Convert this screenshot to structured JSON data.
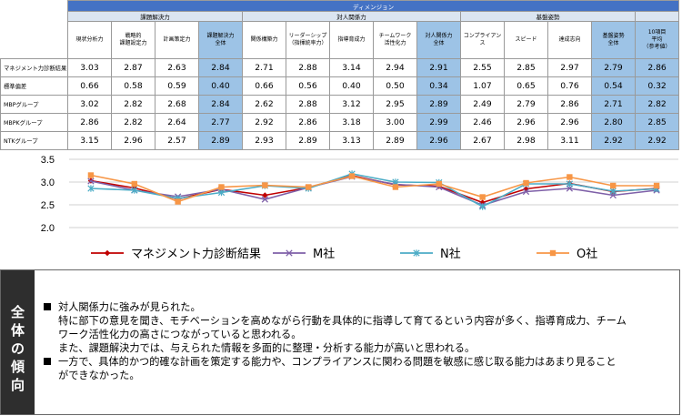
{
  "table": {
    "dimension_header": "ディメンジョン",
    "groups": [
      "課題解決力",
      "対人関係力",
      "基盤姿勢"
    ],
    "columns": [
      "現状分析力",
      "戦略的\n課題設定力",
      "計画策定力",
      "課題解決力\n全体",
      "関係構築力",
      "リーダーシップ\n（指揮統率力）",
      "指導育成力",
      "チームワーク\n活性化力",
      "対人関係力\n全体",
      "コンプライアン\nス",
      "スピード",
      "達成志向",
      "基盤姿勢\n全体",
      "10項目\n平均\n（参考値）"
    ],
    "rows": [
      {
        "label": "マネジメント力診断結果",
        "values": [
          "3.03",
          "2.87",
          "2.63",
          "2.84",
          "2.71",
          "2.88",
          "3.14",
          "2.94",
          "2.91",
          "2.55",
          "2.85",
          "2.97",
          "2.79",
          "2.86"
        ]
      },
      {
        "label": "標準偏差",
        "values": [
          "0.66",
          "0.58",
          "0.59",
          "0.40",
          "0.66",
          "0.56",
          "0.40",
          "0.50",
          "0.34",
          "1.07",
          "0.65",
          "0.76",
          "0.54",
          "0.32"
        ]
      },
      {
        "label": "MBPグループ",
        "values": [
          "3.02",
          "2.82",
          "2.68",
          "2.84",
          "2.62",
          "2.88",
          "3.12",
          "2.95",
          "2.89",
          "2.49",
          "2.79",
          "2.86",
          "2.71",
          "2.82"
        ]
      },
      {
        "label": "MBPKグループ",
        "values": [
          "2.86",
          "2.82",
          "2.64",
          "2.77",
          "2.92",
          "2.86",
          "3.18",
          "3.00",
          "2.99",
          "2.46",
          "2.96",
          "2.96",
          "2.80",
          "2.85"
        ]
      },
      {
        "label": "NTKグループ",
        "values": [
          "3.15",
          "2.96",
          "2.57",
          "2.89",
          "2.93",
          "2.89",
          "3.13",
          "2.89",
          "2.96",
          "2.67",
          "2.98",
          "3.11",
          "2.92",
          "2.92"
        ]
      }
    ]
  },
  "chart_data": {
    "type": "line",
    "x": [
      1,
      2,
      3,
      4,
      5,
      6,
      7,
      8,
      9,
      10,
      11,
      12,
      13,
      14
    ],
    "ylim": [
      2.0,
      3.5
    ],
    "yticks": [
      "3.5",
      "3.0",
      "2.5",
      "2.0"
    ],
    "series": [
      {
        "name": "マネジメント力診断結果",
        "values": [
          3.03,
          2.87,
          2.63,
          2.84,
          2.71,
          2.88,
          3.14,
          2.94,
          2.91,
          2.55,
          2.85,
          2.97,
          2.79,
          2.86
        ]
      },
      {
        "name": "M社",
        "values": [
          3.02,
          2.82,
          2.68,
          2.84,
          2.62,
          2.88,
          3.12,
          2.95,
          2.89,
          2.49,
          2.79,
          2.86,
          2.71,
          2.82
        ]
      },
      {
        "name": "N社",
        "values": [
          2.86,
          2.82,
          2.64,
          2.77,
          2.92,
          2.86,
          3.18,
          3.0,
          2.99,
          2.46,
          2.96,
          2.96,
          2.8,
          2.85
        ]
      },
      {
        "name": "O社",
        "values": [
          3.15,
          2.96,
          2.57,
          2.89,
          2.93,
          2.89,
          3.13,
          2.89,
          2.96,
          2.67,
          2.98,
          3.11,
          2.92,
          2.92
        ]
      }
    ],
    "colors": [
      "#c00000",
      "#7f60a8",
      "#4bacc6",
      "#f79646"
    ],
    "grid": true,
    "legend": "bottom"
  },
  "summary": {
    "side_title": [
      "全",
      "体",
      "の",
      "傾",
      "向"
    ],
    "bullet1": "対人関係力に強みが見られた。",
    "bullet1_line2": "特に部下の意見を聞き、モチベーションを高めながら行動を具体的に指導して育てるという内容が多く、指導育成力、チーム",
    "bullet1_line3": "ワーク活性化力の高さにつながっていると思われる。",
    "bullet1_line4": "また、課題解決力では、与えられた情報を多面的に整理・分析する能力が高いと思われる。",
    "bullet2": "一方で、具体的かつ的確な計画を策定する能力や、コンプライアンスに関わる問題を敏感に感じ取る能力はあまり見ること",
    "bullet2_line2": "ができなかった。"
  }
}
